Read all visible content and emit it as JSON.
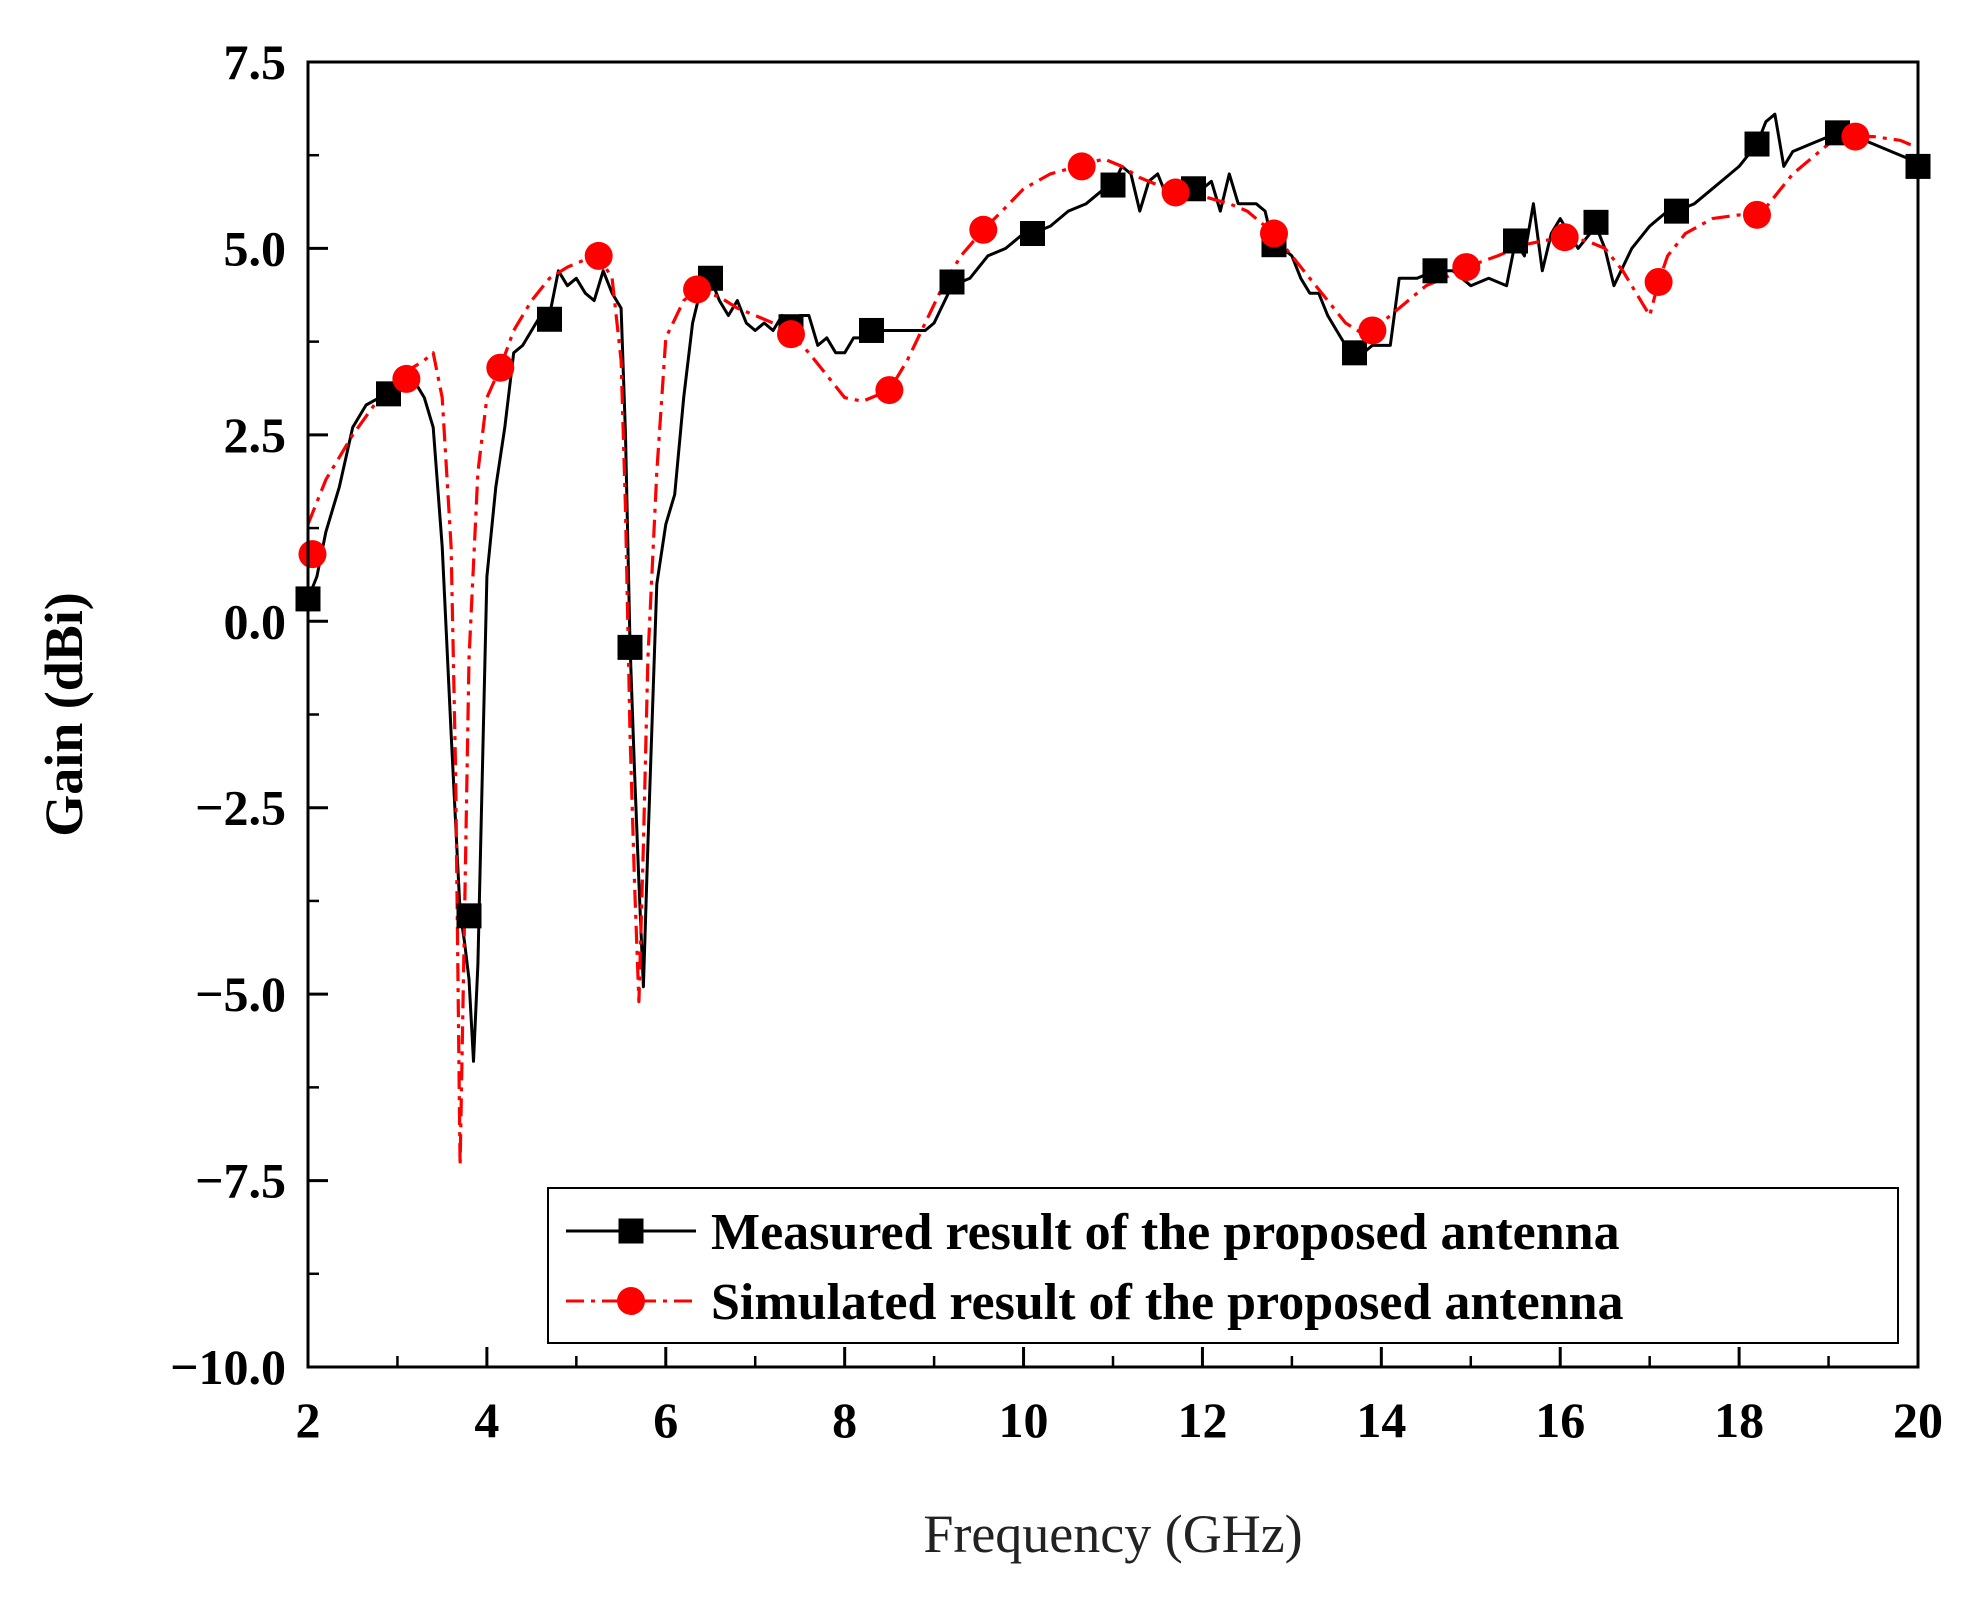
{
  "chart_data": {
    "type": "line",
    "title": "",
    "xlabel": "Frequency (GHz)",
    "ylabel": "Gain (dBi)",
    "xlim": [
      2,
      20
    ],
    "ylim": [
      -10.0,
      7.5
    ],
    "x_ticks": [
      2,
      4,
      6,
      8,
      10,
      12,
      14,
      16,
      18,
      20
    ],
    "x_tick_labels": [
      "2",
      "4",
      "6",
      "8",
      "10",
      "12",
      "14",
      "16",
      "18",
      "20"
    ],
    "y_ticks": [
      -10.0,
      -7.5,
      -5.0,
      -2.5,
      0.0,
      2.5,
      5.0,
      7.5
    ],
    "y_tick_labels": [
      "−10.0",
      "−7.5",
      "−5.0",
      "−2.5",
      "0.0",
      "2.5",
      "5.0",
      "7.5"
    ],
    "grid": false,
    "legend_position": "bottom-right",
    "series": [
      {
        "name": "Measured result of the proposed antenna",
        "color": "#000000",
        "line_style": "solid",
        "marker": "square",
        "x": [
          2.0,
          2.1,
          2.2,
          2.35,
          2.5,
          2.65,
          2.8,
          3.0,
          3.1,
          3.2,
          3.3,
          3.4,
          3.5,
          3.6,
          3.7,
          3.75,
          3.8,
          3.85,
          3.9,
          3.95,
          4.0,
          4.1,
          4.2,
          4.3,
          4.4,
          4.5,
          4.6,
          4.7,
          4.8,
          4.9,
          5.0,
          5.1,
          5.2,
          5.3,
          5.4,
          5.5,
          5.55,
          5.6,
          5.65,
          5.7,
          5.75,
          5.8,
          5.9,
          6.0,
          6.1,
          6.2,
          6.3,
          6.4,
          6.5,
          6.6,
          6.7,
          6.8,
          6.9,
          7.0,
          7.1,
          7.2,
          7.3,
          7.4,
          7.5,
          7.6,
          7.7,
          7.8,
          7.9,
          8.0,
          8.1,
          8.2,
          8.3,
          8.5,
          8.7,
          8.9,
          9.0,
          9.2,
          9.4,
          9.6,
          9.8,
          10.0,
          10.1,
          10.3,
          10.5,
          10.7,
          10.9,
          11.0,
          11.1,
          11.2,
          11.3,
          11.4,
          11.5,
          11.6,
          11.7,
          11.8,
          11.9,
          12.0,
          12.1,
          12.2,
          12.3,
          12.4,
          12.5,
          12.6,
          12.7,
          12.8,
          12.9,
          13.0,
          13.1,
          13.2,
          13.3,
          13.4,
          13.5,
          13.6,
          13.7,
          13.8,
          13.9,
          14.0,
          14.1,
          14.2,
          14.3,
          14.4,
          14.6,
          14.8,
          15.0,
          15.2,
          15.4,
          15.5,
          15.6,
          15.7,
          15.8,
          15.9,
          16.0,
          16.2,
          16.4,
          16.5,
          16.6,
          16.8,
          17.0,
          17.2,
          17.3,
          17.5,
          17.7,
          17.9,
          18.0,
          18.2,
          18.3,
          18.4,
          18.5,
          18.6,
          18.8,
          19.0,
          19.1,
          19.3,
          19.5,
          19.7,
          19.9,
          20.0
        ],
        "y": [
          0.3,
          0.6,
          1.2,
          1.8,
          2.6,
          2.9,
          3.0,
          3.1,
          3.15,
          3.2,
          3.0,
          2.6,
          1.0,
          -1.5,
          -3.9,
          -4.3,
          -4.8,
          -5.9,
          -4.6,
          -2.0,
          0.6,
          1.8,
          2.6,
          3.6,
          3.7,
          3.9,
          4.1,
          4.1,
          4.7,
          4.5,
          4.6,
          4.4,
          4.3,
          4.7,
          4.4,
          4.2,
          2.5,
          -0.3,
          -2.0,
          -3.5,
          -4.9,
          -3.0,
          0.5,
          1.3,
          1.7,
          3.0,
          4.0,
          4.5,
          4.6,
          4.3,
          4.1,
          4.3,
          4.0,
          3.9,
          4.0,
          3.9,
          4.1,
          4.0,
          4.1,
          4.1,
          3.7,
          3.8,
          3.6,
          3.6,
          3.8,
          3.8,
          3.9,
          3.9,
          3.9,
          3.9,
          4.0,
          4.5,
          4.6,
          4.9,
          5.0,
          5.2,
          5.2,
          5.3,
          5.5,
          5.6,
          5.8,
          5.85,
          6.1,
          6.0,
          5.5,
          5.9,
          6.0,
          5.7,
          5.7,
          5.9,
          5.8,
          5.8,
          5.9,
          5.5,
          6.0,
          5.6,
          5.6,
          5.6,
          5.5,
          5.0,
          5.0,
          4.9,
          4.6,
          4.4,
          4.4,
          4.1,
          3.9,
          3.7,
          3.6,
          3.6,
          3.7,
          3.7,
          3.7,
          4.6,
          4.6,
          4.6,
          4.7,
          4.7,
          4.5,
          4.6,
          4.5,
          5.1,
          4.9,
          5.6,
          4.7,
          5.2,
          5.4,
          5.0,
          5.3,
          5.0,
          4.5,
          5.0,
          5.3,
          5.5,
          5.5,
          5.6,
          5.8,
          6.0,
          6.1,
          6.4,
          6.7,
          6.8,
          6.1,
          6.3,
          6.4,
          6.5,
          6.55,
          6.5,
          6.4,
          6.3,
          6.2,
          6.1
        ]
      },
      {
        "name": "Simulated result of the proposed antenna",
        "color": "#ff0000",
        "line_style": "dash-dot",
        "marker": "circle",
        "x": [
          2.0,
          2.2,
          2.5,
          2.8,
          3.0,
          3.1,
          3.3,
          3.4,
          3.5,
          3.6,
          3.65,
          3.7,
          3.75,
          3.8,
          3.9,
          4.0,
          4.15,
          4.3,
          4.5,
          4.7,
          4.9,
          5.1,
          5.25,
          5.4,
          5.5,
          5.55,
          5.6,
          5.65,
          5.7,
          5.75,
          5.8,
          5.9,
          6.0,
          6.2,
          6.35,
          6.6,
          6.8,
          7.0,
          7.2,
          7.4,
          7.6,
          7.8,
          8.0,
          8.2,
          8.3,
          8.5,
          8.7,
          8.9,
          9.1,
          9.3,
          9.55,
          9.8,
          10.0,
          10.3,
          10.6,
          10.9,
          11.1,
          11.3,
          11.5,
          11.7,
          12.0,
          12.3,
          12.5,
          12.8,
          13.0,
          13.2,
          13.4,
          13.6,
          13.8,
          13.9,
          14.1,
          14.3,
          14.5,
          14.7,
          14.95,
          15.3,
          15.6,
          15.8,
          16.05,
          16.3,
          16.5,
          16.7,
          16.9,
          17.0,
          17.1,
          17.2,
          17.4,
          17.7,
          18.0,
          18.2,
          18.4,
          18.6,
          18.8,
          19.0,
          19.3,
          19.5,
          19.8,
          20.0
        ],
        "y": [
          1.3,
          1.9,
          2.5,
          3.0,
          3.25,
          3.35,
          3.5,
          3.6,
          3.0,
          1.0,
          -2.0,
          -7.3,
          -4.0,
          -0.5,
          2.0,
          3.0,
          3.4,
          3.9,
          4.3,
          4.6,
          4.75,
          4.85,
          4.9,
          4.6,
          3.5,
          1.5,
          -1.5,
          -3.5,
          -5.1,
          -3.0,
          -0.5,
          2.0,
          3.8,
          4.3,
          4.45,
          4.35,
          4.2,
          4.1,
          4.0,
          3.85,
          3.6,
          3.3,
          3.0,
          2.95,
          3.0,
          3.1,
          3.5,
          4.0,
          4.5,
          4.9,
          5.25,
          5.55,
          5.8,
          6.0,
          6.1,
          6.2,
          6.1,
          5.95,
          5.85,
          5.75,
          5.7,
          5.6,
          5.5,
          5.2,
          4.9,
          4.6,
          4.3,
          4.0,
          3.85,
          3.9,
          4.1,
          4.3,
          4.5,
          4.6,
          4.75,
          4.9,
          5.05,
          5.1,
          5.15,
          5.1,
          5.0,
          4.7,
          4.3,
          4.1,
          4.55,
          4.9,
          5.2,
          5.4,
          5.45,
          5.4,
          5.7,
          6.0,
          6.2,
          6.4,
          6.5,
          6.5,
          6.45,
          6.35
        ]
      }
    ],
    "marker_points": [
      {
        "series": 0,
        "x": [
          2.0,
          2.9,
          3.8,
          4.7,
          5.6,
          6.5,
          7.4,
          8.3,
          9.2,
          10.1,
          11.0,
          11.9,
          12.8,
          13.7,
          14.6,
          15.5,
          16.4,
          17.3,
          18.2,
          19.1,
          20.0
        ],
        "y": [
          0.3,
          3.05,
          -3.95,
          4.05,
          -0.35,
          4.6,
          3.95,
          3.9,
          4.55,
          5.2,
          5.85,
          5.8,
          5.05,
          3.6,
          4.7,
          5.1,
          5.35,
          5.5,
          6.4,
          6.55,
          6.1
        ]
      },
      {
        "series": 1,
        "x": [
          2.05,
          3.1,
          4.15,
          5.25,
          6.35,
          7.4,
          8.5,
          9.55,
          10.65,
          11.7,
          12.8,
          13.9,
          14.95,
          16.05,
          17.1,
          18.2,
          19.3
        ],
        "y": [
          0.9,
          3.25,
          3.4,
          4.9,
          4.45,
          3.85,
          3.1,
          5.25,
          6.1,
          5.75,
          5.2,
          3.9,
          4.75,
          5.15,
          4.55,
          5.45,
          6.5
        ]
      }
    ]
  }
}
